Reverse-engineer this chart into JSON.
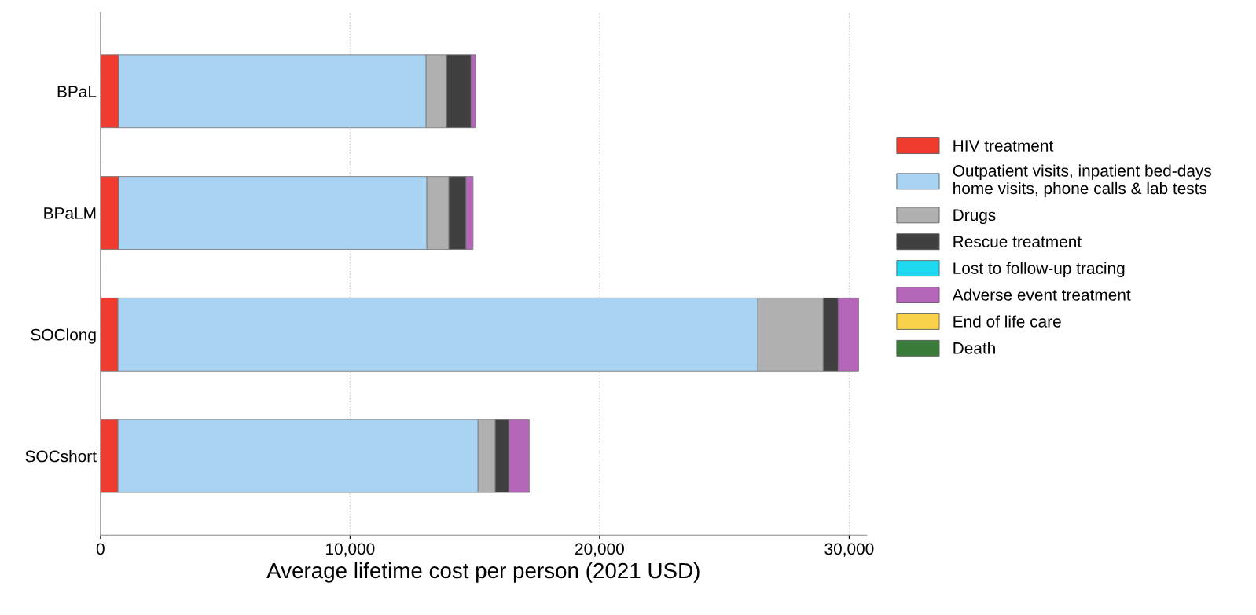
{
  "chart_data": {
    "type": "bar",
    "orientation": "horizontal",
    "stacked": true,
    "xlabel": "Average lifetime cost per person (2021 USD)",
    "categories": [
      "BPaL",
      "BPaLM",
      "SOClong",
      "SOCshort"
    ],
    "series": [
      {
        "name": "HIV treatment",
        "color": "#f03c2e",
        "values": [
          730,
          730,
          700,
          700
        ]
      },
      {
        "name": "Outpatient visits, inpatient bed-days\nhome visits, phone calls & lab tests",
        "color": "#a9d3f2",
        "values": [
          12320,
          12350,
          25640,
          14430
        ]
      },
      {
        "name": "Drugs",
        "color": "#b0b0b0",
        "values": [
          820,
          880,
          2620,
          690
        ]
      },
      {
        "name": "Rescue treatment",
        "color": "#404040",
        "values": [
          980,
          690,
          600,
          540
        ]
      },
      {
        "name": "Lost to follow-up tracing",
        "color": "#1fd9f0",
        "values": [
          0,
          0,
          0,
          0
        ]
      },
      {
        "name": "Adverse event treatment",
        "color": "#b466b8",
        "values": [
          190,
          280,
          820,
          820
        ]
      },
      {
        "name": "End of life care",
        "color": "#f8d24a",
        "values": [
          0,
          0,
          0,
          0
        ]
      },
      {
        "name": "Death",
        "color": "#3a7d3a",
        "values": [
          0,
          0,
          0,
          0
        ]
      }
    ],
    "xlim": [
      0,
      30700
    ],
    "xticks": [
      {
        "value": 0,
        "label": "0"
      },
      {
        "value": 10000,
        "label": "10,000"
      },
      {
        "value": 20000,
        "label": "20,000"
      },
      {
        "value": 30000,
        "label": "30,000"
      }
    ],
    "grid": "x",
    "legend": "right"
  }
}
